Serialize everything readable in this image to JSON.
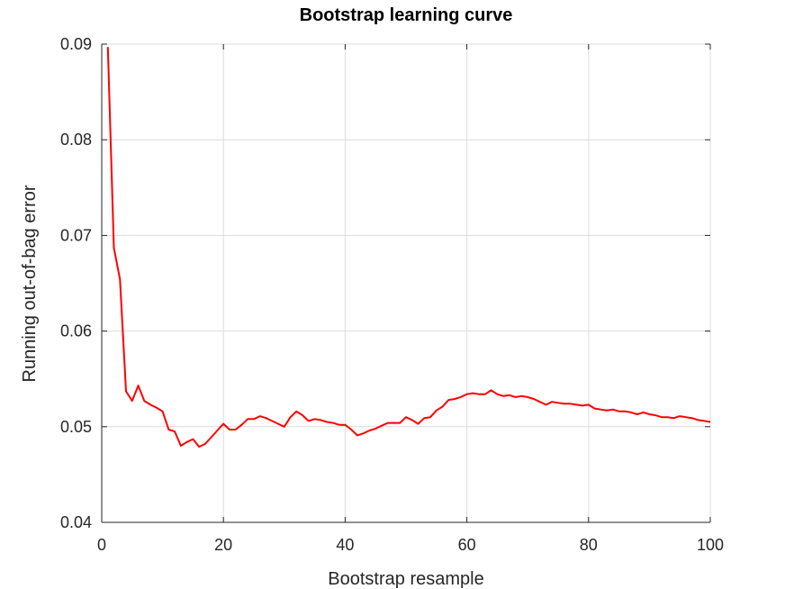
{
  "chart_data": {
    "type": "line",
    "title": "Bootstrap learning curve",
    "xlabel": "Bootstrap resample",
    "ylabel": "Running out-of-bag error",
    "xlim": [
      0,
      100
    ],
    "ylim": [
      0.04,
      0.09
    ],
    "x_ticks": [
      0,
      20,
      40,
      60,
      80,
      100
    ],
    "x_tick_labels": [
      "0",
      "20",
      "40",
      "60",
      "80",
      "100"
    ],
    "y_ticks": [
      0.04,
      0.05,
      0.06,
      0.07,
      0.08,
      0.09
    ],
    "y_tick_labels": [
      "0.04",
      "0.05",
      "0.06",
      "0.07",
      "0.08",
      "0.09"
    ],
    "grid": true,
    "series": [
      {
        "color": "#ff0000",
        "x": [
          1,
          2,
          3,
          4,
          5,
          6,
          7,
          8,
          9,
          10,
          11,
          12,
          13,
          14,
          15,
          16,
          17,
          18,
          19,
          20,
          21,
          22,
          23,
          24,
          25,
          26,
          27,
          28,
          29,
          30,
          31,
          32,
          33,
          34,
          35,
          36,
          37,
          38,
          39,
          40,
          41,
          42,
          43,
          44,
          45,
          46,
          47,
          48,
          49,
          50,
          51,
          52,
          53,
          54,
          55,
          56,
          57,
          58,
          59,
          60,
          61,
          62,
          63,
          64,
          65,
          66,
          67,
          68,
          69,
          70,
          71,
          72,
          73,
          74,
          75,
          76,
          77,
          78,
          79,
          80,
          81,
          82,
          83,
          84,
          85,
          86,
          87,
          88,
          89,
          90,
          91,
          92,
          93,
          94,
          95,
          96,
          97,
          98,
          99,
          100
        ],
        "values": [
          0.0897,
          0.0687,
          0.0654,
          0.0537,
          0.0527,
          0.0543,
          0.0527,
          0.0523,
          0.052,
          0.0516,
          0.0497,
          0.0495,
          0.048,
          0.0484,
          0.0487,
          0.0479,
          0.0482,
          0.0489,
          0.0496,
          0.0503,
          0.0497,
          0.0497,
          0.0502,
          0.0508,
          0.0508,
          0.0511,
          0.0509,
          0.0506,
          0.0503,
          0.05,
          0.051,
          0.0516,
          0.0512,
          0.0506,
          0.0508,
          0.0507,
          0.0505,
          0.0504,
          0.0502,
          0.0502,
          0.0497,
          0.0491,
          0.0493,
          0.0496,
          0.0498,
          0.0501,
          0.0504,
          0.0504,
          0.0504,
          0.051,
          0.0507,
          0.0503,
          0.0509,
          0.051,
          0.0517,
          0.0521,
          0.0528,
          0.0529,
          0.0531,
          0.0534,
          0.0535,
          0.0534,
          0.0534,
          0.0538,
          0.0534,
          0.0532,
          0.0533,
          0.0531,
          0.0532,
          0.0531,
          0.0529,
          0.0526,
          0.0523,
          0.0526,
          0.0525,
          0.0524,
          0.0524,
          0.0523,
          0.0522,
          0.0523,
          0.0519,
          0.0518,
          0.0517,
          0.0518,
          0.0516,
          0.0516,
          0.0515,
          0.0513,
          0.0515,
          0.0513,
          0.0512,
          0.051,
          0.051,
          0.0509,
          0.0511,
          0.051,
          0.0509,
          0.0507,
          0.0506,
          0.0505
        ]
      }
    ]
  }
}
